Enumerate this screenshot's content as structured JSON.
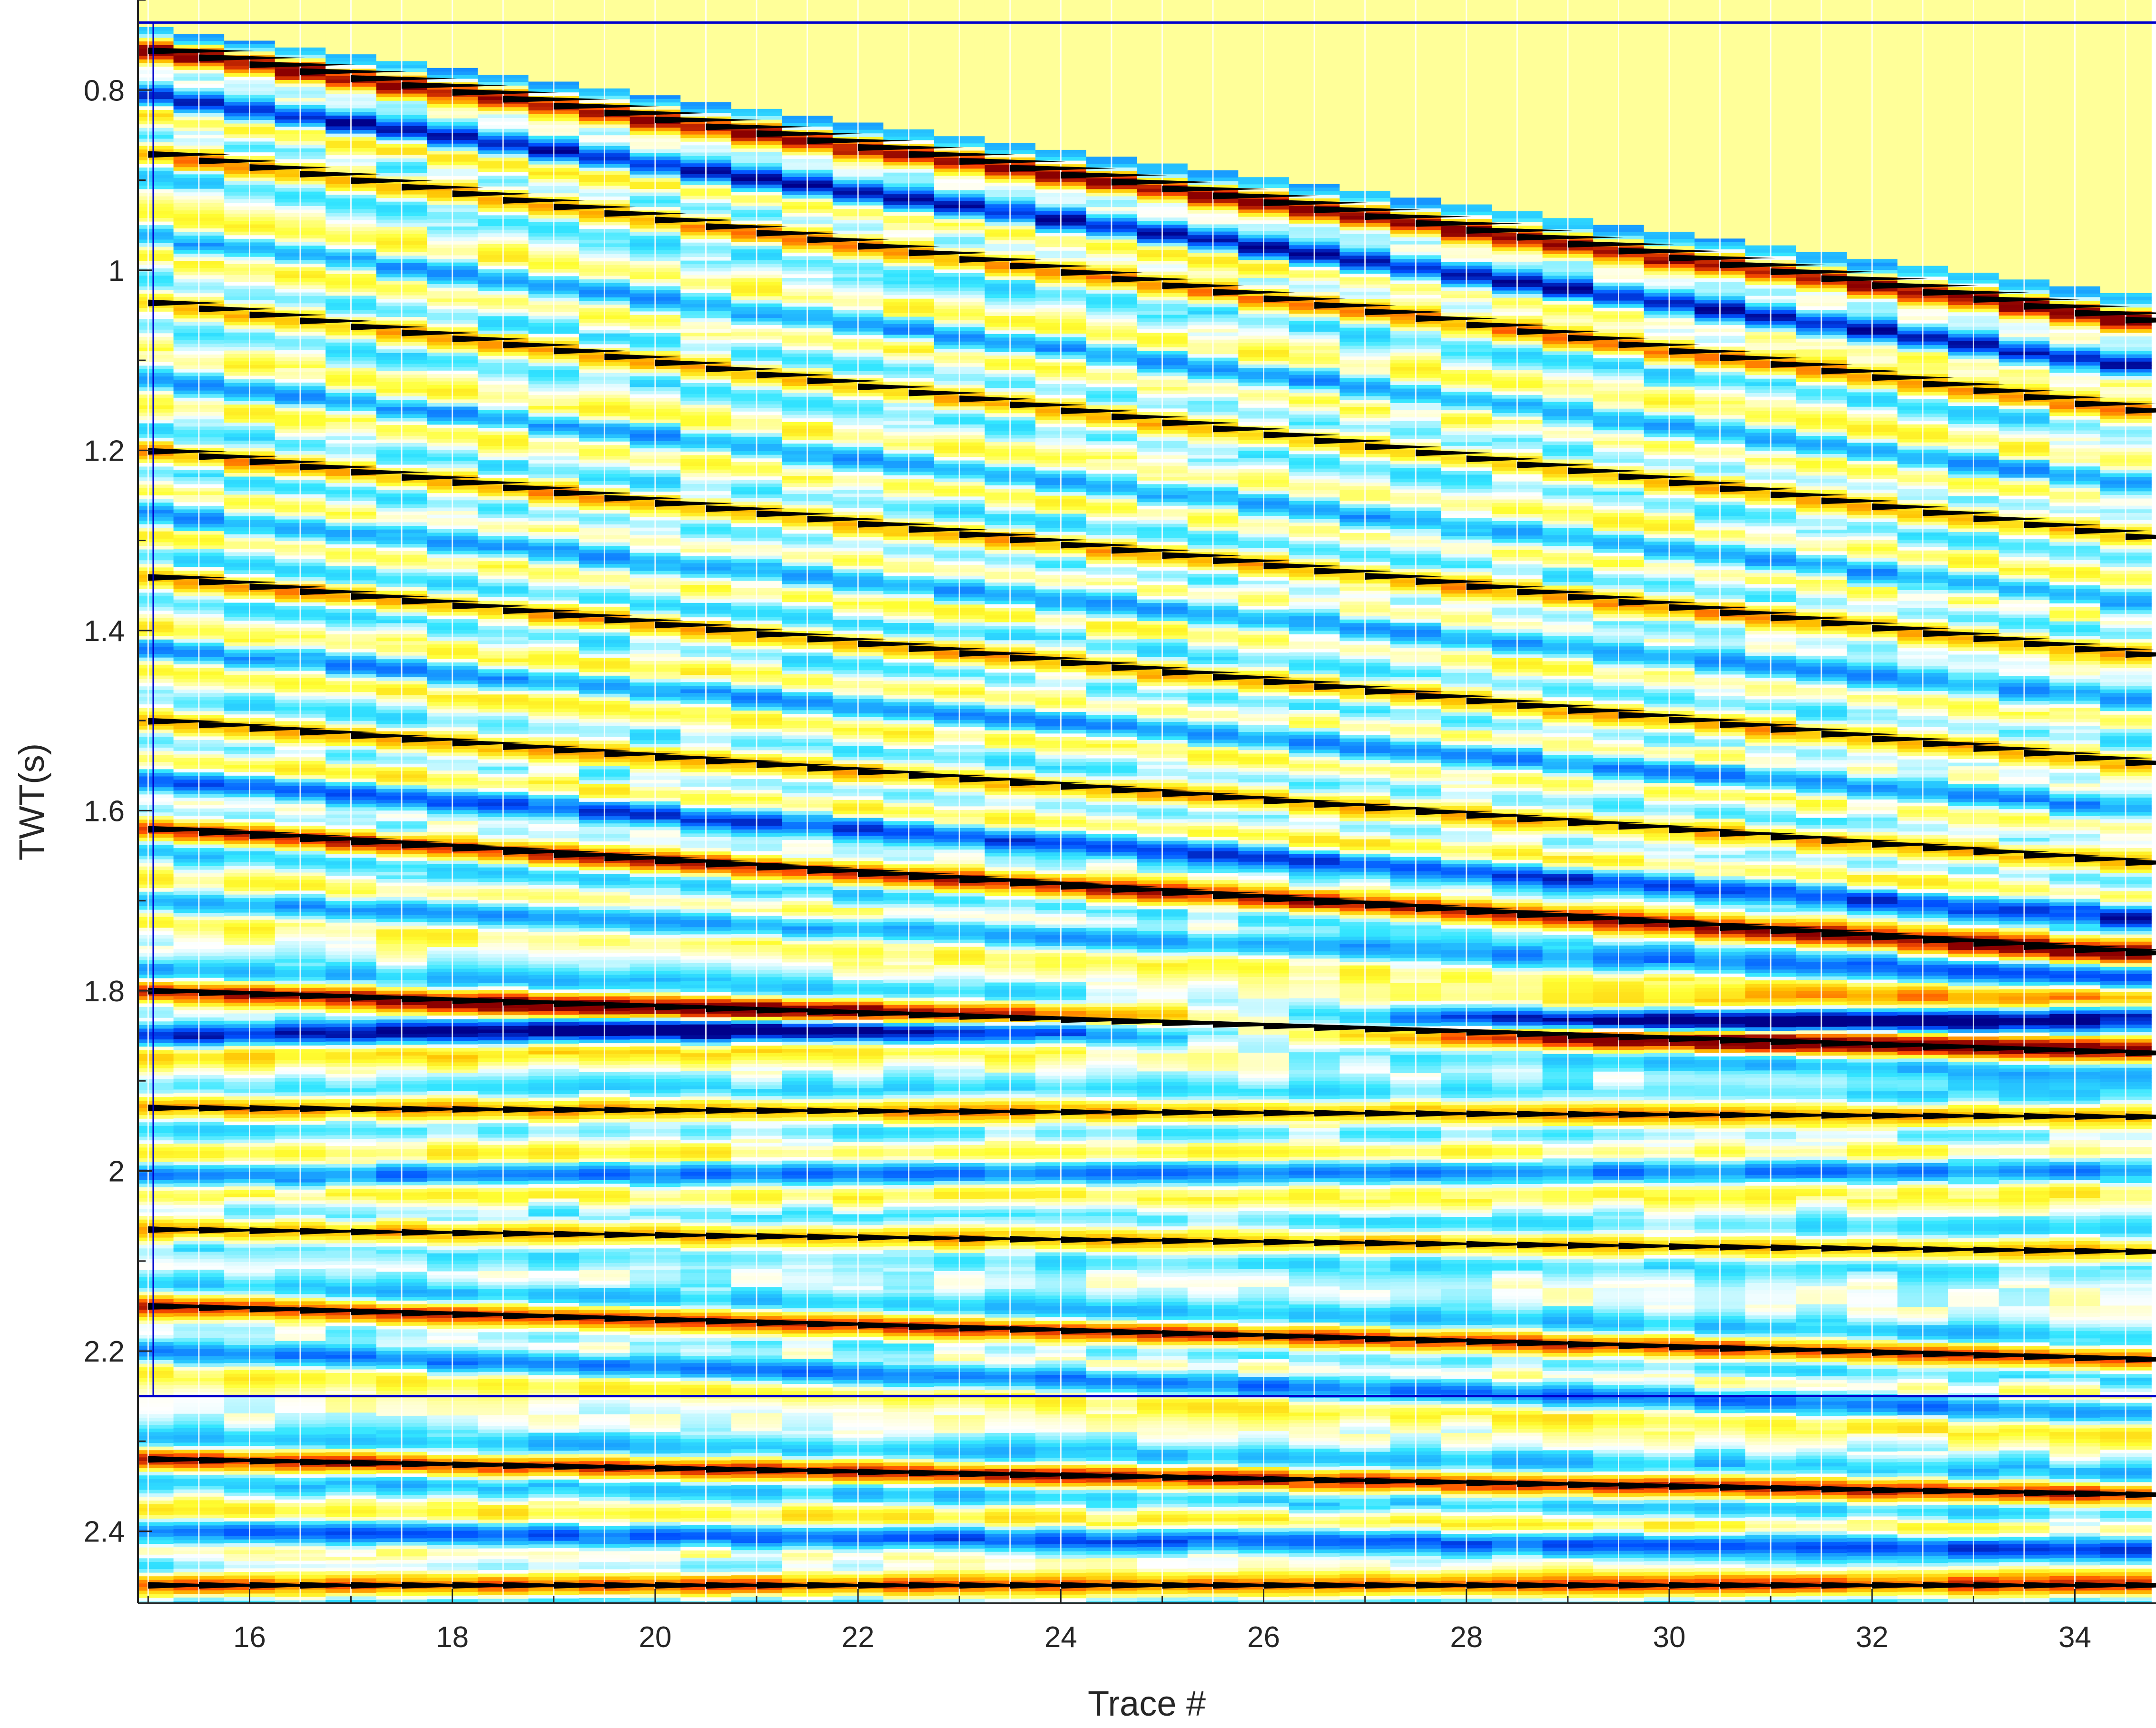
{
  "chart_data": {
    "type": "heatmap",
    "title": "",
    "xlabel": "Trace #",
    "ylabel": "TWT(s)",
    "xlim": [
      14.9,
      34.8
    ],
    "ylim": [
      0.7,
      2.48
    ],
    "y_reversed": true,
    "x_ticks": [
      16,
      18,
      20,
      22,
      24,
      26,
      28,
      30,
      32,
      34
    ],
    "y_ticks": [
      0.8,
      1,
      1.2,
      1.4,
      1.6,
      1.8,
      2,
      2.2,
      2.4
    ],
    "x_tick_labels": [
      "16",
      "18",
      "20",
      "22",
      "24",
      "26",
      "28",
      "30",
      "32",
      "34"
    ],
    "y_tick_labels": [
      "0.8",
      "1",
      "1.2",
      "1.4",
      "1.6",
      "1.8",
      "2",
      "2.2",
      "2.4"
    ],
    "traces": {
      "first": 15,
      "last": 34.5,
      "step": 0.5
    },
    "time_sample_s": 0.004,
    "muted_zone": {
      "top_twt_s": 0.7,
      "bottom_twt_at_trace_15_s": 0.73,
      "bottom_twt_at_trace_34_8_s": 1.03
    },
    "window_lines_twt_s": [
      0.725,
      2.25
    ],
    "colormap": {
      "negative_extreme": "#00008b",
      "negative_strong": "#0050ff",
      "negative_medium": "#1aa3ff",
      "negative_weak": "#33e6ff",
      "zero": "#ffffff",
      "positive_weak": "#ffff33",
      "positive_medium": "#ffc000",
      "positive_strong": "#ff5000",
      "positive_extreme": "#8b0000",
      "muted_fill": "#ffff99"
    },
    "reflectors": [
      {
        "t0": 0.755,
        "t_end": 1.06,
        "amp": 1.0
      },
      {
        "t0": 0.805,
        "t_end": 1.11,
        "amp": -0.9
      },
      {
        "t0": 0.87,
        "t_end": 1.16,
        "amp": 0.6
      },
      {
        "t0": 0.96,
        "t_end": 1.24,
        "amp": -0.5
      },
      {
        "t0": 1.035,
        "t_end": 1.3,
        "amp": 0.5
      },
      {
        "t0": 1.12,
        "t_end": 1.37,
        "amp": -0.5
      },
      {
        "t0": 1.2,
        "t_end": 1.43,
        "amp": 0.55
      },
      {
        "t0": 1.27,
        "t_end": 1.48,
        "amp": -0.5
      },
      {
        "t0": 1.34,
        "t_end": 1.55,
        "amp": 0.55
      },
      {
        "t0": 1.42,
        "t_end": 1.6,
        "amp": -0.55
      },
      {
        "t0": 1.5,
        "t_end": 1.66,
        "amp": 0.5
      },
      {
        "t0": 1.565,
        "t_end": 1.72,
        "amp": -0.75
      },
      {
        "t0": 1.62,
        "t_end": 1.76,
        "amp": 0.85
      },
      {
        "t0": 1.7,
        "t_end": 1.79,
        "amp": -0.5
      },
      {
        "t0": 1.8,
        "t_end": 1.87,
        "amp": 0.9
      },
      {
        "t0": 1.85,
        "t_end": 1.83,
        "amp": -0.85
      },
      {
        "t0": 1.93,
        "t_end": 1.94,
        "amp": 0.55
      },
      {
        "t0": 2.005,
        "t_end": 2.0,
        "amp": -0.6
      },
      {
        "t0": 2.065,
        "t_end": 2.09,
        "amp": 0.5
      },
      {
        "t0": 2.15,
        "t_end": 2.21,
        "amp": 0.8
      },
      {
        "t0": 2.2,
        "t_end": 2.27,
        "amp": -0.6
      },
      {
        "t0": 2.32,
        "t_end": 2.36,
        "amp": 0.85
      },
      {
        "t0": 2.4,
        "t_end": 2.42,
        "amp": -0.7
      },
      {
        "t0": 2.46,
        "t_end": 2.46,
        "amp": 0.7
      }
    ]
  }
}
